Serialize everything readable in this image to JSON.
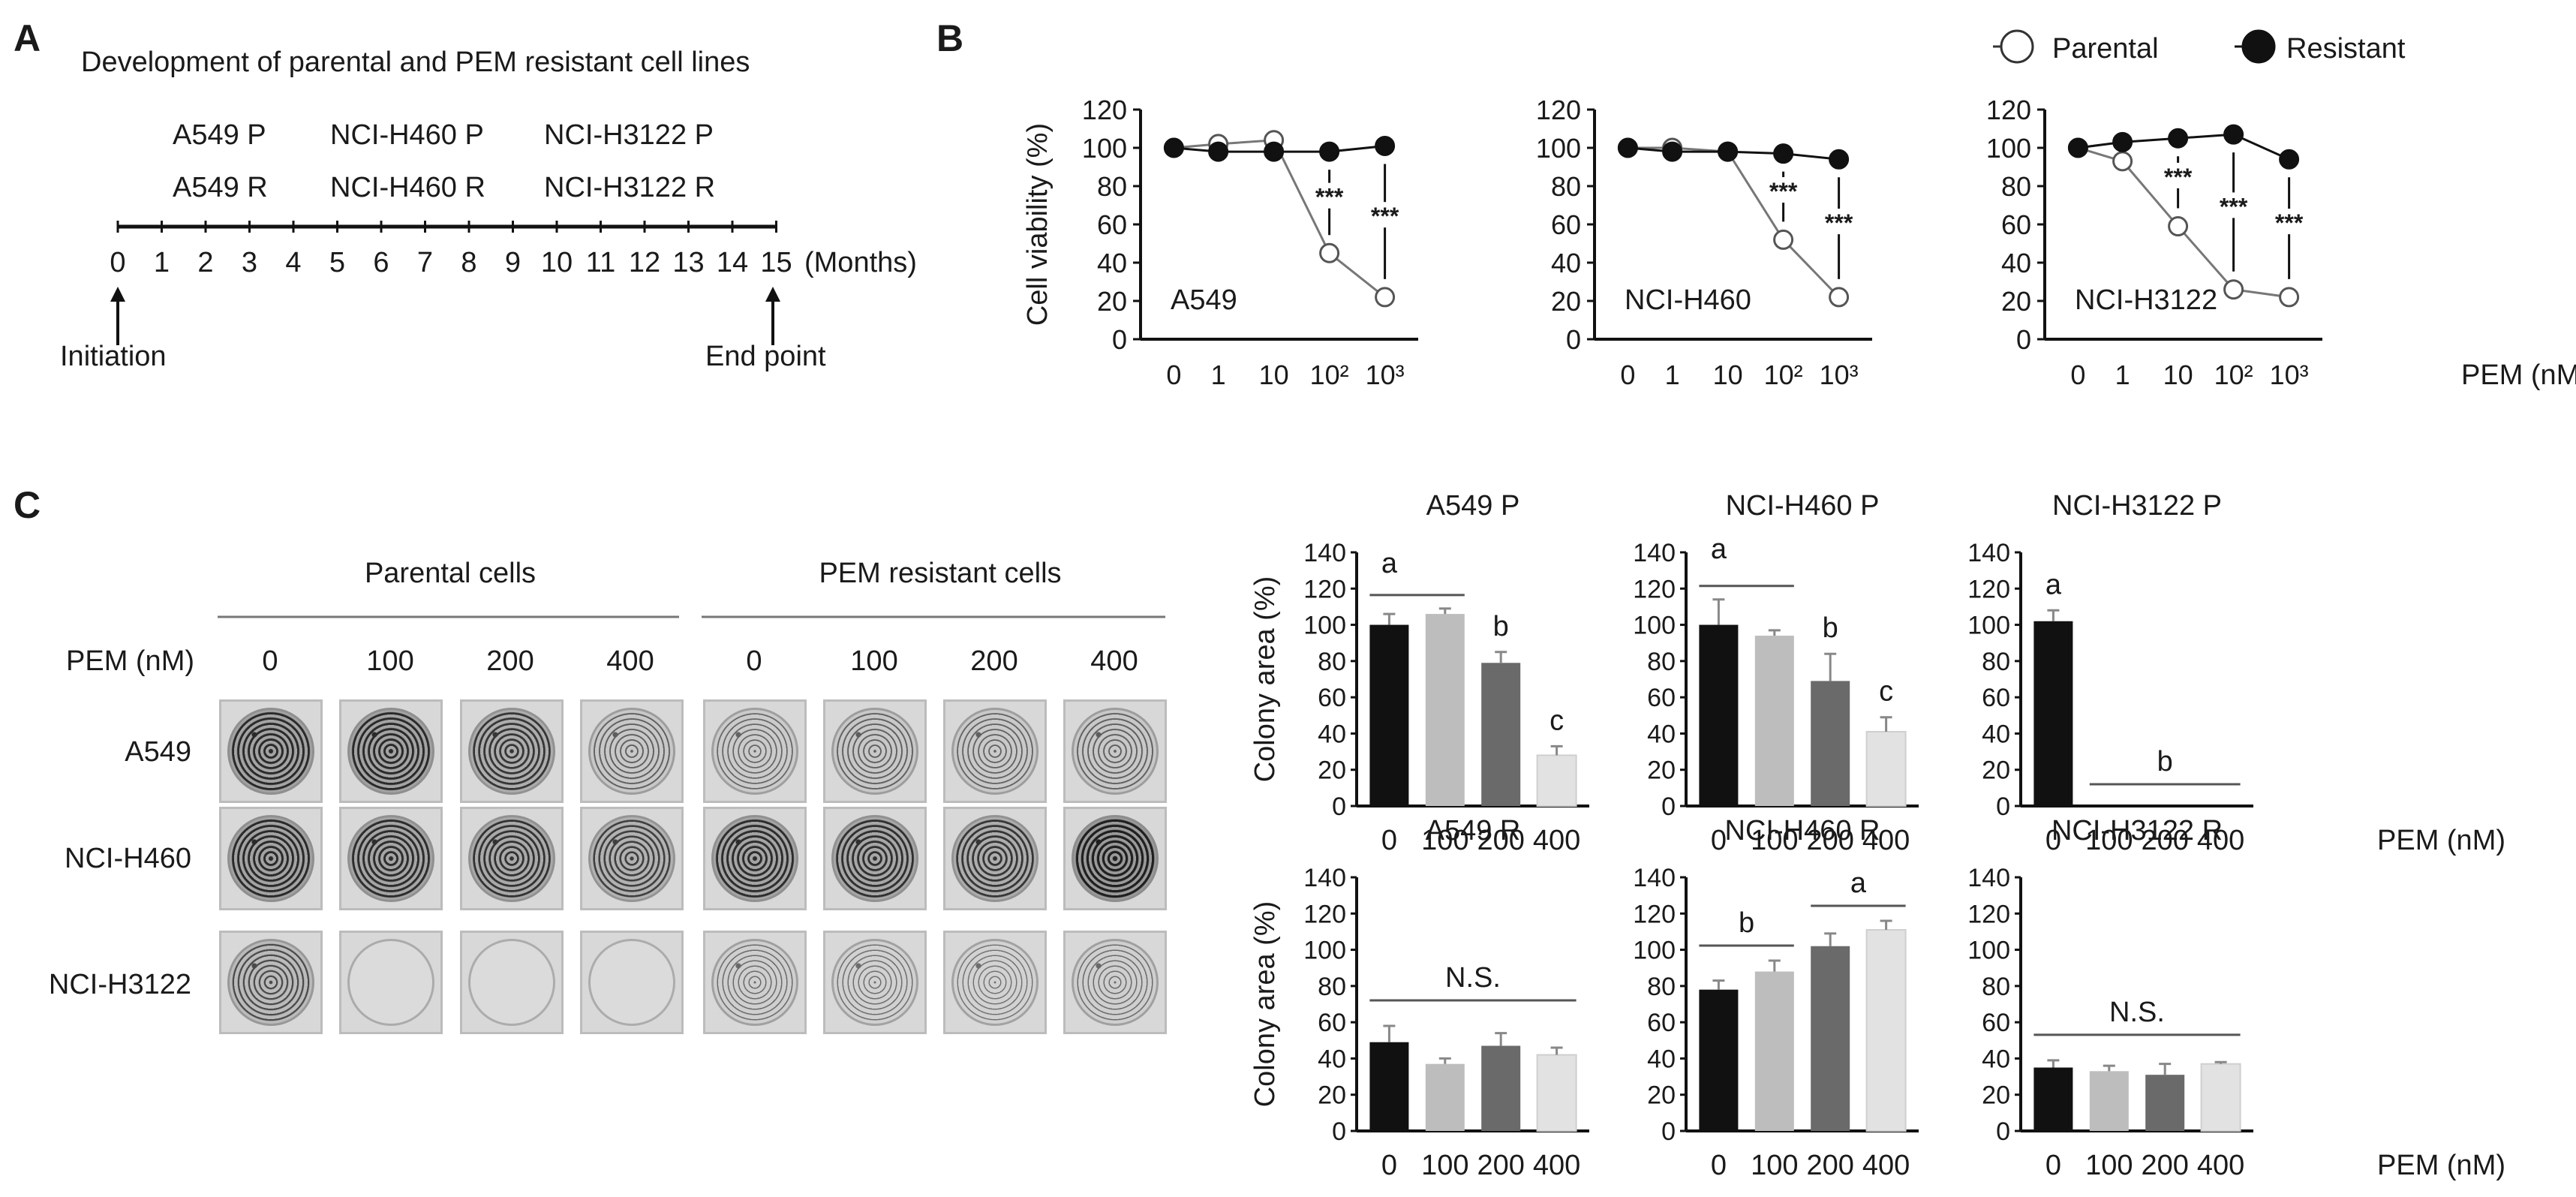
{
  "panels": {
    "a": "A",
    "b": "B",
    "c": "C"
  },
  "timeline": {
    "title": "Development of parental and PEM resistant cell lines",
    "parental_labels": [
      "A549 P",
      "NCI-H460 P",
      "NCI-H3122 P"
    ],
    "resistant_labels": [
      "A549 R",
      "NCI-H460 R",
      "NCI-H3122 R"
    ],
    "months": [
      "0",
      "1",
      "2",
      "3",
      "4",
      "5",
      "6",
      "7",
      "8",
      "9",
      "10",
      "11",
      "12",
      "13",
      "14",
      "15"
    ],
    "unit": "(Months)",
    "start_label": "Initiation",
    "end_label": "End point"
  },
  "legend": {
    "parental": "Parental",
    "resistant": "Resistant"
  },
  "colony_images": {
    "pem_header": "PEM (nM)",
    "group_parental": "Parental cells",
    "group_resistant": "PEM resistant cells",
    "doses": [
      "0",
      "100",
      "200",
      "400"
    ],
    "cell_lines": [
      "A549",
      "NCI-H460",
      "NCI-H3122"
    ]
  },
  "chart_data": [
    {
      "type": "line",
      "title": "A549",
      "ylabel": "Cell viability (%)",
      "xlabel": "PEM (nM)",
      "categories": [
        "0",
        "1",
        "10",
        "10²",
        "10³"
      ],
      "ylim": [
        0,
        120
      ],
      "yticks": [
        "0",
        "20",
        "40",
        "60",
        "80",
        "100",
        "120"
      ],
      "series": [
        {
          "name": "Parental",
          "values": [
            100,
            102,
            104,
            45,
            22
          ]
        },
        {
          "name": "Resistant",
          "values": [
            100,
            98,
            98,
            98,
            101
          ]
        }
      ],
      "annotations": [
        {
          "index": 3,
          "text": "***"
        },
        {
          "index": 4,
          "text": "***"
        }
      ]
    },
    {
      "type": "line",
      "title": "NCI-H460",
      "ylabel": "",
      "xlabel": "PEM (nM)",
      "categories": [
        "0",
        "1",
        "10",
        "10²",
        "10³"
      ],
      "ylim": [
        0,
        120
      ],
      "yticks": [
        "0",
        "20",
        "40",
        "60",
        "80",
        "100",
        "120"
      ],
      "series": [
        {
          "name": "Parental",
          "values": [
            100,
            100,
            98,
            52,
            22
          ]
        },
        {
          "name": "Resistant",
          "values": [
            100,
            98,
            98,
            97,
            94
          ]
        }
      ],
      "annotations": [
        {
          "index": 3,
          "text": "***"
        },
        {
          "index": 4,
          "text": "***"
        }
      ]
    },
    {
      "type": "line",
      "title": "NCI-H3122",
      "ylabel": "",
      "xlabel": "PEM (nM)",
      "categories": [
        "0",
        "1",
        "10",
        "10²",
        "10³"
      ],
      "ylim": [
        0,
        120
      ],
      "yticks": [
        "0",
        "20",
        "40",
        "60",
        "80",
        "100",
        "120"
      ],
      "series": [
        {
          "name": "Parental",
          "values": [
            100,
            93,
            59,
            26,
            22
          ]
        },
        {
          "name": "Resistant",
          "values": [
            100,
            103,
            105,
            107,
            94
          ]
        }
      ],
      "annotations": [
        {
          "index": 2,
          "text": "***"
        },
        {
          "index": 3,
          "text": "***"
        },
        {
          "index": 4,
          "text": "***"
        }
      ]
    },
    {
      "type": "bar",
      "title": "A549 P",
      "ylabel": "Colony area (%)",
      "xlabel": "PEM (nM)",
      "categories": [
        "0",
        "100",
        "200",
        "400"
      ],
      "values": [
        100,
        106,
        79,
        28
      ],
      "errors": [
        6,
        3,
        6,
        5
      ],
      "ylim": [
        0,
        140
      ],
      "yticks": [
        "0",
        "20",
        "40",
        "60",
        "80",
        "100",
        "120",
        "140"
      ],
      "letters": [
        "a",
        "",
        "b",
        "c"
      ],
      "group_lines": [
        {
          "from": 0,
          "to": 1,
          "label_index": 0
        }
      ]
    },
    {
      "type": "bar",
      "title": "NCI-H460 P",
      "ylabel": "",
      "xlabel": "PEM (nM)",
      "categories": [
        "0",
        "100",
        "200",
        "400"
      ],
      "values": [
        100,
        94,
        69,
        41
      ],
      "errors": [
        14,
        3,
        15,
        8
      ],
      "ylim": [
        0,
        140
      ],
      "yticks": [
        "0",
        "20",
        "40",
        "60",
        "80",
        "100",
        "120",
        "140"
      ],
      "letters": [
        "a",
        "",
        "b",
        "c"
      ],
      "group_lines": [
        {
          "from": 0,
          "to": 1,
          "label_index": 0
        }
      ]
    },
    {
      "type": "bar",
      "title": "NCI-H3122 P",
      "ylabel": "",
      "xlabel": "PEM (nM)",
      "categories": [
        "0",
        "100",
        "200",
        "400"
      ],
      "values": [
        102,
        0,
        0,
        0
      ],
      "errors": [
        6,
        0,
        0,
        0
      ],
      "ylim": [
        0,
        140
      ],
      "yticks": [
        "0",
        "20",
        "40",
        "60",
        "80",
        "100",
        "120",
        "140"
      ],
      "letters": [
        "a",
        "",
        "",
        ""
      ],
      "group_lines": [
        {
          "from": 1,
          "to": 3,
          "label": "b"
        }
      ]
    },
    {
      "type": "bar",
      "title": "A549 R",
      "ylabel": "Colony area (%)",
      "xlabel": "PEM (nM)",
      "categories": [
        "0",
        "100",
        "200",
        "400"
      ],
      "values": [
        49,
        37,
        47,
        42
      ],
      "errors": [
        9,
        3,
        7,
        4
      ],
      "ylim": [
        0,
        140
      ],
      "yticks": [
        "0",
        "20",
        "40",
        "60",
        "80",
        "100",
        "120",
        "140"
      ],
      "letters": [
        "",
        "",
        "",
        ""
      ],
      "group_lines": [
        {
          "from": 0,
          "to": 3,
          "label": "N.S."
        }
      ]
    },
    {
      "type": "bar",
      "title": "NCI-H460 R",
      "ylabel": "",
      "xlabel": "PEM (nM)",
      "categories": [
        "0",
        "100",
        "200",
        "400"
      ],
      "values": [
        78,
        88,
        102,
        111
      ],
      "errors": [
        5,
        6,
        7,
        5
      ],
      "ylim": [
        0,
        140
      ],
      "yticks": [
        "0",
        "20",
        "40",
        "60",
        "80",
        "100",
        "120",
        "140"
      ],
      "letters": [
        "",
        "",
        "",
        ""
      ],
      "group_lines": [
        {
          "from": 0,
          "to": 1,
          "label": "b"
        },
        {
          "from": 2,
          "to": 3,
          "label": "a"
        }
      ]
    },
    {
      "type": "bar",
      "title": "NCI-H3122 R",
      "ylabel": "",
      "xlabel": "PEM (nM)",
      "categories": [
        "0",
        "100",
        "200",
        "400"
      ],
      "values": [
        35,
        33,
        31,
        37
      ],
      "errors": [
        4,
        3,
        6,
        1
      ],
      "ylim": [
        0,
        140
      ],
      "yticks": [
        "0",
        "20",
        "40",
        "60",
        "80",
        "100",
        "120",
        "140"
      ],
      "letters": [
        "",
        "",
        "",
        ""
      ],
      "group_lines": [
        {
          "from": 0,
          "to": 3,
          "label": "N.S."
        }
      ]
    }
  ],
  "colors": {
    "bar_fills": [
      "#111111",
      "#bdbdbd",
      "#6a6a6a",
      "#e2e2e2"
    ],
    "axis": "#111111"
  }
}
